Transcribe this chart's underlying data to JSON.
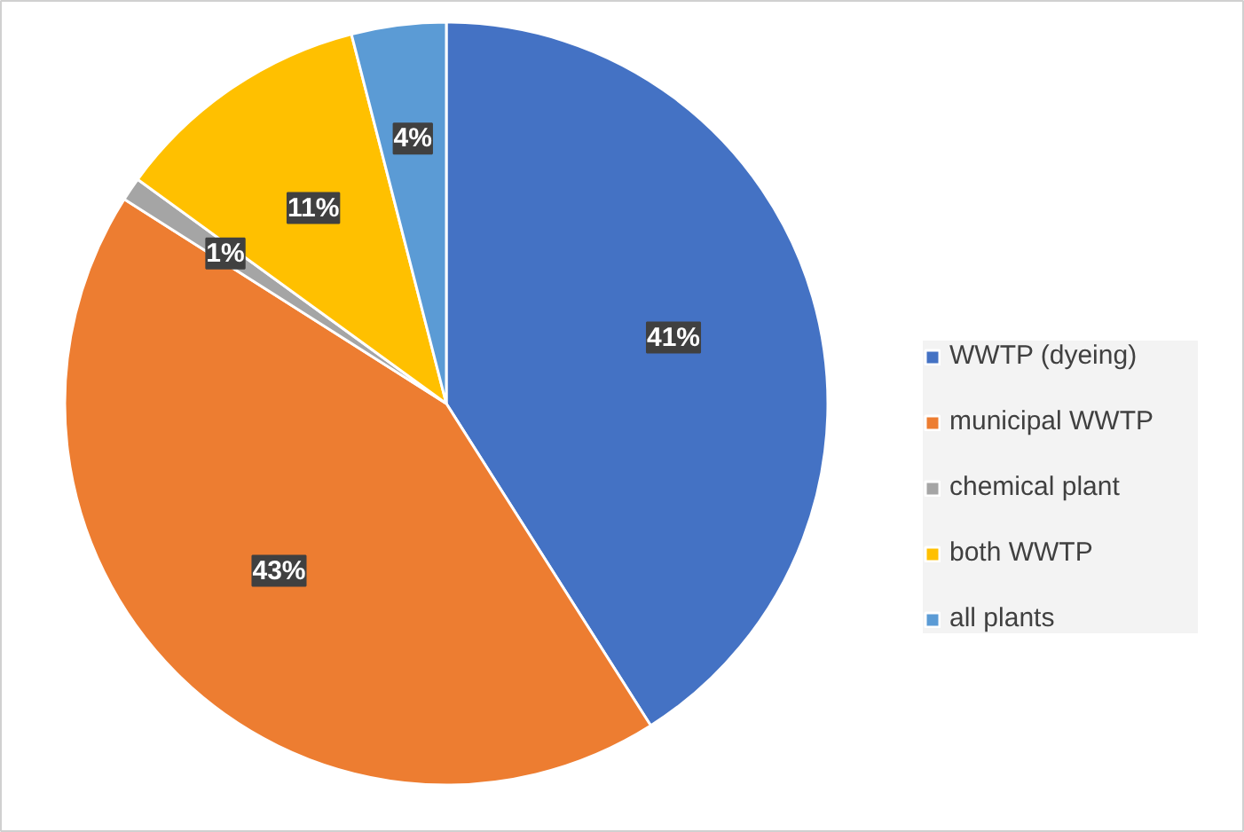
{
  "chart_data": {
    "type": "pie",
    "categories": [
      "WWTP (dyeing)",
      "municipal WWTP",
      "chemical plant",
      "both WWTP",
      "all plants"
    ],
    "values": [
      41,
      43,
      1,
      11,
      4
    ],
    "colors": [
      "#4472c4",
      "#ed7d31",
      "#a5a5a5",
      "#ffc000",
      "#5b9bd5"
    ],
    "value_labels": [
      "41%",
      "43%",
      "1%",
      "11%",
      "4%"
    ],
    "legend": "right"
  }
}
